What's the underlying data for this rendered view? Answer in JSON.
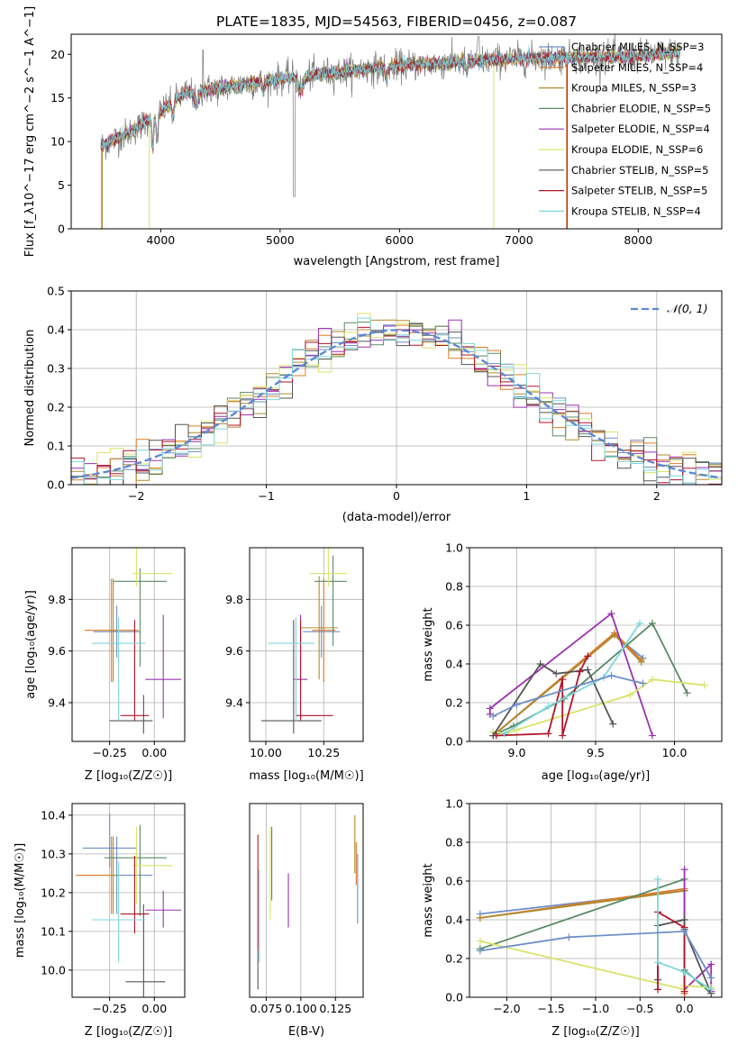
{
  "figure": {
    "title": "PLATE=1835, MJD=54563, FIBERID=0456, z=0.087"
  },
  "colors": {
    "models": [
      "#6e8fc7",
      "#e07b28",
      "#b08a2e",
      "#5a8a63",
      "#9b30b0",
      "#d9e36a",
      "#555555",
      "#b0162a",
      "#7fd6dc"
    ],
    "data": "#7a7a7a",
    "normal": "#5a87d6",
    "grid": "#b0b0b0"
  },
  "chart_data": [
    {
      "id": "spectrum",
      "type": "line",
      "xlabel": "wavelength [Angstrom, rest frame]",
      "ylabel": "Flux [f_λ10^−17 erg cm^−2 s^−1 A^−1]",
      "xlim": [
        3250,
        8700
      ],
      "ylim": [
        0,
        22.3
      ],
      "xticks": [
        4000,
        5000,
        6000,
        7000,
        8000
      ],
      "yticks": [
        0,
        5,
        10,
        15,
        20
      ],
      "grid": false,
      "legend_position": "top-right",
      "wavelength_range": [
        3500,
        8350
      ],
      "continuum_anchors": [
        [
          3500,
          9.5
        ],
        [
          3800,
          11.5
        ],
        [
          4000,
          13.5
        ],
        [
          4200,
          15.5
        ],
        [
          5000,
          17.2
        ],
        [
          6000,
          18.7
        ],
        [
          7000,
          19.5
        ],
        [
          8000,
          19.8
        ],
        [
          8350,
          20.2
        ]
      ],
      "series": [
        {
          "name": "Chabrier MILES, N_SSP=3"
        },
        {
          "name": "Salpeter MILES, N_SSP=4"
        },
        {
          "name": "Kroupa MILES, N_SSP=3"
        },
        {
          "name": "Chabrier ELODIE, N_SSP=5"
        },
        {
          "name": "Salpeter ELODIE, N_SSP=4"
        },
        {
          "name": "Kroupa ELODIE, N_SSP=6"
        },
        {
          "name": "Chabrier STELIB, N_SSP=5"
        },
        {
          "name": "Salpeter STELIB, N_SSP=5"
        },
        {
          "name": "Kroupa STELIB, N_SSP=4"
        }
      ]
    },
    {
      "id": "residuals",
      "type": "line",
      "xlabel": "(data-model)/error",
      "ylabel": "Normed distribution",
      "xlim": [
        -2.5,
        2.5
      ],
      "ylim": [
        0,
        0.5
      ],
      "xticks": [
        -2,
        -1,
        0,
        1,
        2
      ],
      "yticks": [
        0.0,
        0.1,
        0.2,
        0.3,
        0.4,
        0.5
      ],
      "grid": true,
      "legend_position": "top-right",
      "legend": [
        "𝒩(0, 1)"
      ],
      "bin_width": 0.1
    },
    {
      "id": "age_vs_Z",
      "type": "scatter",
      "xlabel": "Z [log₁₀(Z/Z☉)]",
      "ylabel": "age  [log₁₀(age/yr)]",
      "xlim": [
        -0.46,
        0.17
      ],
      "ylim": [
        9.25,
        10.0
      ],
      "xticks": [
        -0.25,
        0.0
      ],
      "yticks": [
        9.4,
        9.6,
        9.8
      ],
      "grid": true,
      "points": [
        {
          "x": -0.21,
          "xerr": [
            0.13,
            0.13
          ],
          "y": 9.675,
          "yerr": [
            0.1,
            0.1
          ]
        },
        {
          "x": -0.24,
          "xerr": [
            0.15,
            0.15
          ],
          "y": 9.68,
          "yerr": [
            0.2,
            0.2
          ]
        },
        {
          "x": -0.23,
          "xerr": [
            0.02,
            0.02
          ],
          "y": 9.68,
          "yerr": [
            0.2,
            0.2
          ]
        },
        {
          "x": -0.08,
          "xerr": [
            0.15,
            0.15
          ],
          "y": 9.87,
          "yerr": [
            0.33,
            0.05
          ]
        },
        {
          "x": 0.05,
          "xerr": [
            0.1,
            0.1
          ],
          "y": 9.49,
          "yerr": [
            0.15,
            0.25
          ]
        },
        {
          "x": -0.1,
          "xerr": [
            0.02,
            0.2
          ],
          "y": 9.9,
          "yerr": [
            0.05,
            0.1
          ]
        },
        {
          "x": -0.06,
          "xerr": [
            0.19,
            0.05
          ],
          "y": 9.33,
          "yerr": [
            0.05,
            0.1
          ]
        },
        {
          "x": -0.11,
          "xerr": [
            0.08,
            0.08
          ],
          "y": 9.35,
          "yerr": [
            0.02,
            0.37
          ]
        },
        {
          "x": -0.2,
          "xerr": [
            0.15,
            0.15
          ],
          "y": 9.63,
          "yerr": [
            0.3,
            0.1
          ]
        }
      ]
    },
    {
      "id": "age_vs_mass",
      "type": "scatter",
      "xlabel": "mass [log₁₀(M/M☉)]",
      "ylabel": "",
      "xlim": [
        9.93,
        10.42
      ],
      "ylim": [
        9.25,
        10.0
      ],
      "xticks": [
        10.0,
        10.25
      ],
      "yticks": [
        9.4,
        9.6,
        9.8
      ],
      "grid": true,
      "points": [
        {
          "x": 10.24,
          "xerr": [
            0.08,
            0.08
          ],
          "y": 9.675,
          "yerr": [
            0.1,
            0.1
          ]
        },
        {
          "x": 10.25,
          "xerr": [
            0.05,
            0.05
          ],
          "y": 9.68,
          "yerr": [
            0.2,
            0.2
          ]
        },
        {
          "x": 10.23,
          "xerr": [
            0.08,
            0.08
          ],
          "y": 9.69,
          "yerr": [
            0.2,
            0.2
          ]
        },
        {
          "x": 10.29,
          "xerr": [
            0.08,
            0.06
          ],
          "y": 9.87,
          "yerr": [
            0.25,
            0.1
          ]
        },
        {
          "x": 10.15,
          "xerr": [
            0.03,
            0.03
          ],
          "y": 9.49,
          "yerr": [
            0.15,
            0.25
          ]
        },
        {
          "x": 10.27,
          "xerr": [
            0.08,
            0.08
          ],
          "y": 9.9,
          "yerr": [
            0.05,
            0.1
          ]
        },
        {
          "x": 10.12,
          "xerr": [
            0.14,
            0.12
          ],
          "y": 9.33,
          "yerr": [
            0.05,
            0.39
          ]
        },
        {
          "x": 10.15,
          "xerr": [
            0.02,
            0.14
          ],
          "y": 9.35,
          "yerr": [
            0.02,
            0.37
          ]
        },
        {
          "x": 10.13,
          "xerr": [
            0.12,
            0.08
          ],
          "y": 9.63,
          "yerr": [
            0.3,
            0.1
          ]
        }
      ]
    },
    {
      "id": "massweight_vs_age",
      "type": "line",
      "xlabel": "age  [log₁₀(age/yr)]",
      "ylabel": "mass weight",
      "xlim": [
        8.7,
        10.3
      ],
      "ylim": [
        0,
        1.0
      ],
      "xticks": [
        9.0,
        9.5,
        10.0
      ],
      "yticks": [
        0.0,
        0.2,
        0.4,
        0.6,
        0.8,
        1.0
      ],
      "grid": true,
      "series": [
        {
          "x": [
            8.85,
            9.62,
            9.8
          ],
          "y": [
            0.03,
            0.55,
            0.43
          ]
        },
        {
          "x": [
            8.85,
            9.62,
            9.79
          ],
          "y": [
            0.03,
            0.56,
            0.42
          ]
        },
        {
          "x": [
            8.85,
            9.62,
            9.79
          ],
          "y": [
            0.03,
            0.55,
            0.41
          ]
        },
        {
          "x": [
            8.87,
            8.98,
            9.3,
            9.86,
            10.08
          ],
          "y": [
            0.04,
            0.08,
            0.22,
            0.61,
            0.25
          ]
        },
        {
          "x": [
            8.83,
            8.83,
            9.6,
            9.86
          ],
          "y": [
            0.14,
            0.17,
            0.66,
            0.03
          ]
        },
        {
          "x": [
            8.85,
            8.93,
            9.0,
            9.72,
            9.86,
            10.19
          ],
          "y": [
            0.05,
            0.04,
            0.06,
            0.24,
            0.32,
            0.29
          ]
        },
        {
          "x": [
            8.85,
            9.15,
            9.25,
            9.45,
            9.61
          ],
          "y": [
            0.03,
            0.4,
            0.35,
            0.37,
            0.09
          ]
        },
        {
          "x": [
            8.87,
            9.2,
            9.29,
            9.29,
            9.4,
            9.45
          ],
          "y": [
            0.03,
            0.04,
            0.32,
            0.03,
            0.36,
            0.44
          ]
        },
        {
          "x": [
            8.92,
            9.2,
            9.55,
            9.78
          ],
          "y": [
            0.04,
            0.18,
            0.33,
            0.61
          ]
        },
        {
          "x": [
            8.85,
            9.0,
            9.6,
            9.8
          ],
          "y": [
            0.13,
            0.19,
            0.34,
            0.3
          ]
        }
      ]
    },
    {
      "id": "mass_vs_Z",
      "type": "scatter",
      "xlabel": "Z [log₁₀(Z/Z☉)]",
      "ylabel": "mass [log₁₀(M/M☉)]",
      "xlim": [
        -0.46,
        0.17
      ],
      "ylim": [
        9.93,
        10.43
      ],
      "xticks": [
        -0.25,
        0.0
      ],
      "yticks": [
        10.0,
        10.1,
        10.2,
        10.3,
        10.4
      ],
      "grid": true,
      "points": [
        {
          "x": -0.21,
          "xerr": [
            0.2,
            0.2
          ],
          "y": 10.245,
          "yerr": [
            0.1,
            0.1
          ]
        },
        {
          "x": -0.24,
          "xerr": [
            0.2,
            0.0
          ],
          "y": 10.245,
          "yerr": [
            0.1,
            0.1
          ]
        },
        {
          "x": -0.23,
          "xerr": [
            0.02,
            0.02
          ],
          "y": 10.245,
          "yerr": [
            0.1,
            0.1
          ]
        },
        {
          "x": -0.08,
          "xerr": [
            0.2,
            0.15
          ],
          "y": 10.29,
          "yerr": [
            0.15,
            0.085
          ]
        },
        {
          "x": 0.05,
          "xerr": [
            0.1,
            0.1
          ],
          "y": 10.155,
          "yerr": [
            0.045,
            0.05
          ]
        },
        {
          "x": -0.1,
          "xerr": [
            0.02,
            0.2
          ],
          "y": 10.27,
          "yerr": [
            0.1,
            0.1
          ]
        },
        {
          "x": -0.06,
          "xerr": [
            0.1,
            0.12
          ],
          "y": 9.97,
          "yerr": [
            0.05,
            0.2
          ]
        },
        {
          "x": -0.11,
          "xerr": [
            0.08,
            0.08
          ],
          "y": 10.145,
          "yerr": [
            0.05,
            0.15
          ]
        },
        {
          "x": -0.2,
          "xerr": [
            0.15,
            0.15
          ],
          "y": 10.13,
          "yerr": [
            0.11,
            0.15
          ]
        },
        {
          "x": -0.25,
          "xerr": [
            0.15,
            0.15
          ],
          "y": 10.315,
          "yerr": [
            0.05,
            0.09
          ]
        }
      ]
    },
    {
      "id": "mass_vs_ebv",
      "type": "scatter",
      "xlabel": "E(B-V)",
      "ylabel": "",
      "xlim": [
        0.063,
        0.145
      ],
      "ylim": [
        9.93,
        10.43
      ],
      "xticks": [
        0.075,
        0.1,
        0.125
      ],
      "xtick_labels": [
        "0.075",
        "0.100",
        "0.125"
      ],
      "ytick_labels": [
        "10.0",
        "10.1",
        "10.2",
        "10.3",
        "10.4"
      ],
      "grid": true,
      "points": [
        {
          "x": 0.141,
          "y": 10.2,
          "yerr": [
            0.08,
            0.1
          ]
        },
        {
          "x": 0.14,
          "y": 10.27,
          "yerr": [
            0.05,
            0.06
          ]
        },
        {
          "x": 0.139,
          "y": 10.32,
          "yerr": [
            0.07,
            0.08
          ]
        },
        {
          "x": 0.079,
          "y": 10.25,
          "yerr": [
            0.07,
            0.12
          ]
        },
        {
          "x": 0.091,
          "y": 10.18,
          "yerr": [
            0.07,
            0.07
          ]
        },
        {
          "x": 0.078,
          "y": 10.25,
          "yerr": [
            0.12,
            0.12
          ]
        },
        {
          "x": 0.069,
          "y": 10.0,
          "yerr": [
            0.05,
            0.05
          ]
        },
        {
          "x": 0.069,
          "y": 10.2,
          "yerr": [
            0.15,
            0.15
          ]
        },
        {
          "x": 0.07,
          "y": 10.12,
          "yerr": [
            0.1,
            0.14
          ]
        }
      ]
    },
    {
      "id": "massweight_vs_Z",
      "type": "line",
      "xlabel": "Z [log₁₀(Z/Z☉)]",
      "ylabel": "mass weight",
      "xlim": [
        -2.42,
        0.42
      ],
      "ylim": [
        0,
        1.0
      ],
      "xticks": [
        -2.0,
        -1.5,
        -1.0,
        -0.5,
        0.0
      ],
      "yticks": [
        0.0,
        0.2,
        0.4,
        0.6,
        0.8,
        1.0
      ],
      "grid": true,
      "series": [
        {
          "x": [
            -2.3,
            0.0,
            0.0
          ],
          "y": [
            0.43,
            0.55,
            0.02
          ]
        },
        {
          "x": [
            -2.3,
            0.0,
            0.0
          ],
          "y": [
            0.41,
            0.56,
            0.02
          ]
        },
        {
          "x": [
            -2.3,
            0.0,
            0.0
          ],
          "y": [
            0.41,
            0.55,
            0.03
          ]
        },
        {
          "x": [
            -2.3,
            0.0,
            0.0,
            0.3
          ],
          "y": [
            0.25,
            0.61,
            0.14,
            0.02
          ]
        },
        {
          "x": [
            0.0,
            0.0,
            0.3,
            0.3
          ],
          "y": [
            0.66,
            0.04,
            0.17,
            0.03
          ]
        },
        {
          "x": [
            -2.3,
            0.0,
            0.0,
            0.3
          ],
          "y": [
            0.29,
            0.04,
            0.06,
            0.05
          ]
        },
        {
          "x": [
            -0.3,
            -0.3,
            0.0,
            0.0,
            0.3
          ],
          "y": [
            0.09,
            0.37,
            0.4,
            0.35,
            0.02
          ]
        },
        {
          "x": [
            -0.3,
            -0.3,
            0.0,
            0.0
          ],
          "y": [
            0.04,
            0.44,
            0.36,
            0.03
          ]
        },
        {
          "x": [
            -0.3,
            -0.3,
            0.0,
            0.3
          ],
          "y": [
            0.61,
            0.18,
            0.13,
            0.04
          ]
        },
        {
          "x": [
            -2.3,
            -1.3,
            0.0,
            0.3
          ],
          "y": [
            0.24,
            0.31,
            0.34,
            0.1
          ]
        }
      ]
    }
  ]
}
